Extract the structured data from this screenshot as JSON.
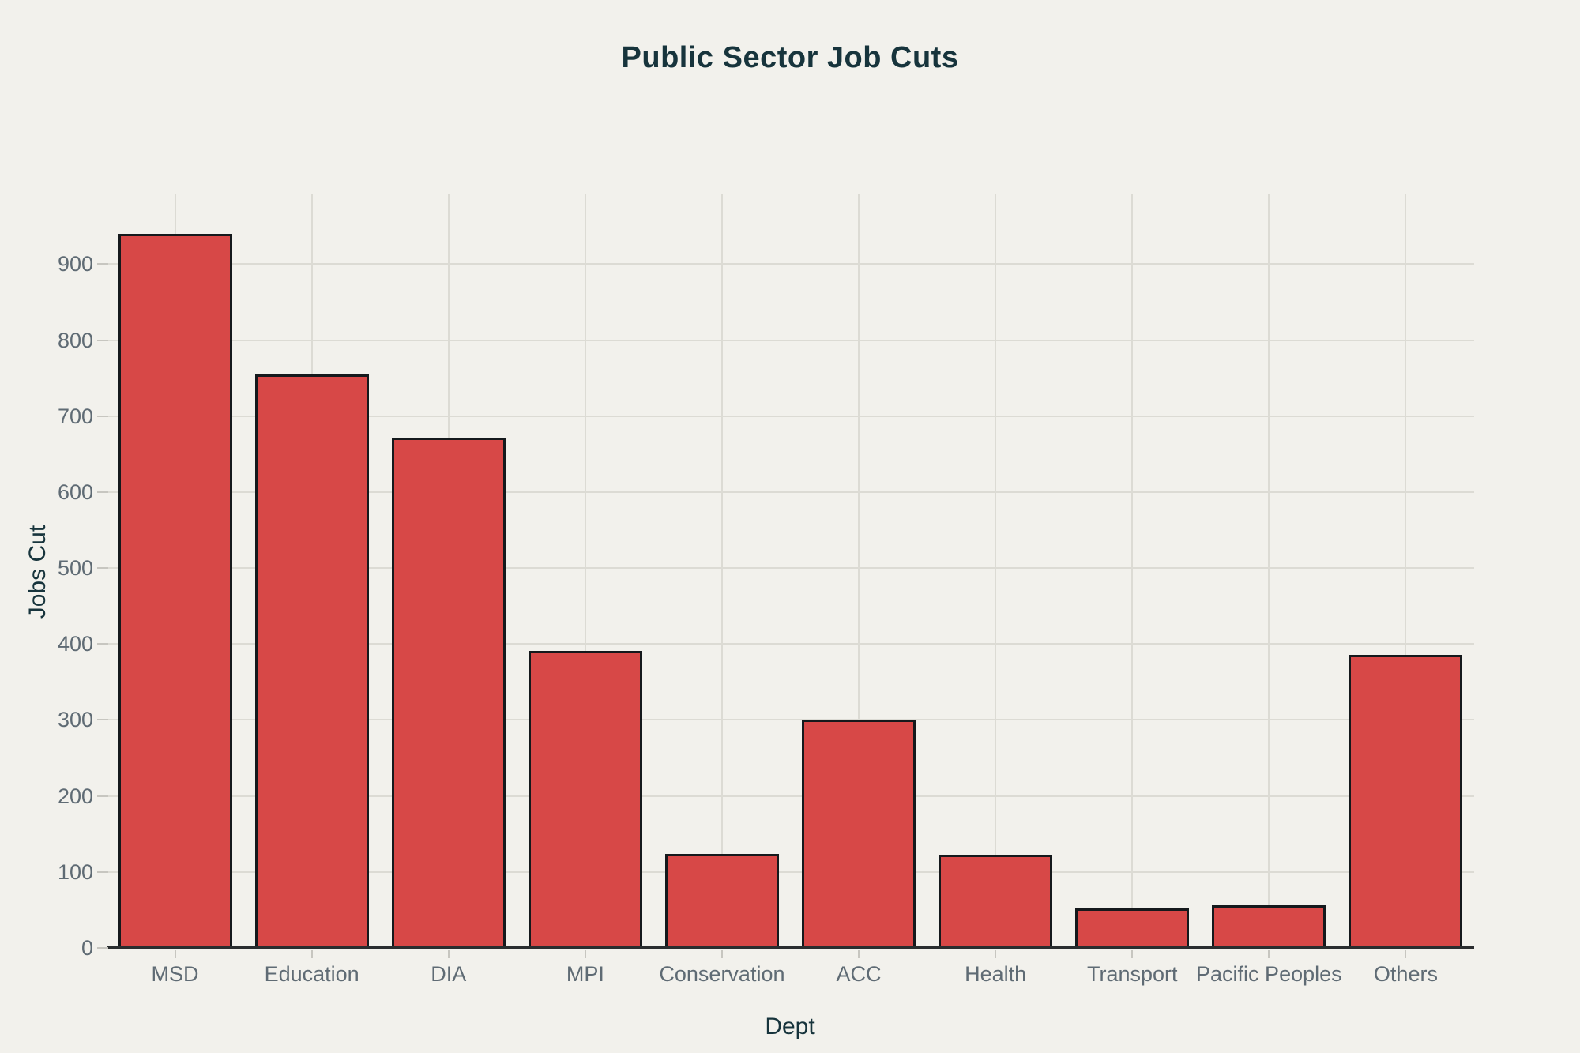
{
  "chart_data": {
    "type": "bar",
    "title": "Public Sector Job Cuts",
    "xlabel": "Dept",
    "ylabel": "Jobs Cut",
    "categories": [
      "MSD",
      "Education",
      "DIA",
      "MPI",
      "Conservation",
      "ACC",
      "Health",
      "Transport",
      "Pacific Peoples",
      "Others"
    ],
    "values": [
      940,
      755,
      672,
      391,
      124,
      300,
      123,
      52,
      56,
      386
    ],
    "yticks": [
      0,
      100,
      200,
      300,
      400,
      500,
      600,
      700,
      800,
      900
    ],
    "ylim": [
      0,
      993
    ],
    "grid": true,
    "legend": false,
    "colors": {
      "background": "#f2f1ec",
      "bar_fill": "#d74847",
      "bar_border": "#15191c",
      "gridline": "#dcdbd4",
      "tick_mark": "#c7c6c0",
      "tick_label": "#5f6b74",
      "heading_text": "#17343c",
      "axis_line": "#2a2d2f"
    }
  }
}
